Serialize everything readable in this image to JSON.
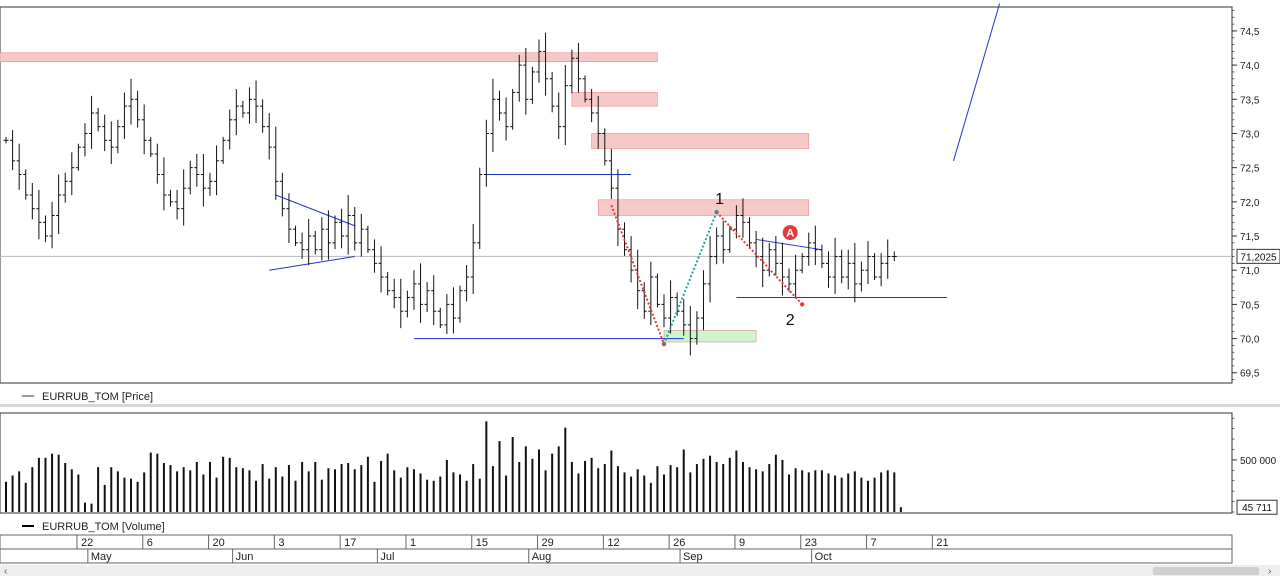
{
  "chart_data": [
    {
      "type": "ohlc",
      "title": "",
      "legend": {
        "name": "EURRUB_TOM [Price]",
        "placement": "bottom-left"
      },
      "last_price": 71.2025,
      "last_price_label": "71,2025",
      "ylim": [
        69.35,
        74.85
      ],
      "y_ticks": [
        69.5,
        70.0,
        70.5,
        71.0,
        71.5,
        72.0,
        72.5,
        73.0,
        73.5,
        74.0,
        74.5
      ],
      "y_tick_labels": [
        "69,5",
        "70,0",
        "70,5",
        "71,0",
        "71,5",
        "72,0",
        "72,5",
        "73,0",
        "73,5",
        "74,0",
        "74,5"
      ],
      "grid": false,
      "x_ticks": [
        {
          "day": 12,
          "label": "22"
        },
        {
          "day": 22,
          "label": "6"
        },
        {
          "day": 32,
          "label": "20"
        },
        {
          "day": 42,
          "label": "3"
        },
        {
          "day": 52,
          "label": "17"
        },
        {
          "day": 62,
          "label": "1"
        },
        {
          "day": 72,
          "label": "15"
        },
        {
          "day": 82,
          "label": "29"
        },
        {
          "day": 92,
          "label": "12"
        },
        {
          "day": 102,
          "label": "26"
        },
        {
          "day": 112,
          "label": "9"
        },
        {
          "day": 122,
          "label": "23"
        },
        {
          "day": 132,
          "label": "7"
        },
        {
          "day": 142,
          "label": "21"
        }
      ],
      "month_labels": [
        {
          "day": 17,
          "label": "May"
        },
        {
          "day": 39,
          "label": "Jun"
        },
        {
          "day": 61,
          "label": "Jul"
        },
        {
          "day": 84,
          "label": "Aug"
        },
        {
          "day": 107,
          "label": "Sep"
        },
        {
          "day": 127,
          "label": "Oct"
        }
      ],
      "closes": [
        72.9,
        72.6,
        72.4,
        72.1,
        71.9,
        71.7,
        71.5,
        71.8,
        72.1,
        72.3,
        72.5,
        72.8,
        73.0,
        73.3,
        73.1,
        72.9,
        72.8,
        73.1,
        73.4,
        73.5,
        73.2,
        72.9,
        72.7,
        72.4,
        72.1,
        72.0,
        71.9,
        72.2,
        72.5,
        72.4,
        72.2,
        72.3,
        72.6,
        72.9,
        73.2,
        73.4,
        73.3,
        73.5,
        73.4,
        73.1,
        72.8,
        72.3,
        71.9,
        71.6,
        71.4,
        71.3,
        71.5,
        71.3,
        71.6,
        71.4,
        71.7,
        71.5,
        71.8,
        71.4,
        71.6,
        71.3,
        71.1,
        70.9,
        70.7,
        70.6,
        70.4,
        70.6,
        70.8,
        70.5,
        70.7,
        70.4,
        70.2,
        70.5,
        70.3,
        70.7,
        70.9,
        71.4,
        72.4,
        73.0,
        73.5,
        73.3,
        73.1,
        73.6,
        74.0,
        73.5,
        73.9,
        74.2,
        73.8,
        73.4,
        73.1,
        73.7,
        74.1,
        73.8,
        73.5,
        73.3,
        73.0,
        72.6,
        72.2,
        71.6,
        71.3,
        71.0,
        70.7,
        70.4,
        70.9,
        70.5,
        70.3,
        70.6,
        70.4,
        70.2,
        70.0,
        70.3,
        70.8,
        71.2,
        71.5,
        71.3,
        71.6,
        71.8,
        71.7,
        71.4,
        71.2,
        71.0,
        71.3,
        71.1,
        70.9,
        70.8,
        71.0,
        71.2,
        71.4,
        71.3,
        71.1,
        70.9,
        71.2,
        70.9,
        71.1,
        70.8,
        71.0,
        71.2,
        70.9,
        71.1,
        71.2,
        71.2
      ],
      "zones": [
        {
          "from_day": 0,
          "to_day": 99,
          "low": 74.05,
          "high": 74.18,
          "color": "#f7c8c8"
        },
        {
          "from_day": 86,
          "to_day": 99,
          "low": 73.4,
          "high": 73.6,
          "color": "#f7c8c8"
        },
        {
          "from_day": 89,
          "to_day": 122,
          "low": 72.78,
          "high": 73.0,
          "color": "#f7c8c8"
        },
        {
          "from_day": 90,
          "to_day": 122,
          "low": 71.8,
          "high": 72.03,
          "color": "#f7c8c8"
        },
        {
          "from_day": 100,
          "to_day": 114,
          "low": 69.95,
          "high": 70.12,
          "color": "#ccf5cc"
        }
      ],
      "support_lines": [
        {
          "from_day": 73,
          "to_day": 95,
          "price": 72.4
        },
        {
          "from_day": 62,
          "to_day": 103,
          "price": 70.0
        },
        {
          "from_day": 111,
          "to_day": 143,
          "price": 70.6
        }
      ],
      "triangles": [
        {
          "upper": [
            [
              41,
              72.1
            ],
            [
              53,
              71.65
            ]
          ],
          "lower": [
            [
              40,
              71.0
            ],
            [
              53,
              71.2
            ]
          ]
        }
      ],
      "trend_lines": [
        {
          "from": [
            114,
            71.45
          ],
          "to": [
            124,
            71.3
          ]
        },
        {
          "from": [
            144,
            72.6
          ],
          "to": [
            151,
            74.9
          ]
        }
      ],
      "waves": [
        {
          "from": [
            92,
            71.95
          ],
          "to": [
            100,
            69.92
          ],
          "color": "#e03c3c"
        },
        {
          "from": [
            100,
            69.92
          ],
          "to": [
            108,
            71.85
          ],
          "color": "#22a39a"
        },
        {
          "from": [
            108,
            71.85
          ],
          "to": [
            121,
            70.5
          ],
          "color": "#e03c3c"
        }
      ],
      "annotations": [
        {
          "day": 108,
          "price": 71.97,
          "text": "1"
        },
        {
          "day": 121,
          "price": 70.2,
          "text": "2"
        },
        {
          "day": 121,
          "price": 71.55,
          "text": "A",
          "marker": "circle",
          "color": "#e03c3c"
        }
      ]
    },
    {
      "type": "bar",
      "title": "",
      "legend": {
        "name": "EURRUB_TOM [Volume]",
        "placement": "bottom-left"
      },
      "last_value": 45711,
      "last_value_label": "45 711",
      "ylim": [
        0,
        950000
      ],
      "y_ticks": [
        500000
      ],
      "y_tick_labels": [
        "500 000"
      ],
      "grid": false,
      "values": [
        290000,
        350000,
        390000,
        280000,
        430000,
        520000,
        520000,
        560000,
        550000,
        470000,
        410000,
        360000,
        90000,
        80000,
        430000,
        260000,
        430000,
        390000,
        330000,
        320000,
        290000,
        380000,
        570000,
        560000,
        470000,
        450000,
        390000,
        430000,
        400000,
        480000,
        360000,
        480000,
        330000,
        530000,
        520000,
        430000,
        420000,
        400000,
        300000,
        460000,
        320000,
        430000,
        340000,
        450000,
        300000,
        480000,
        390000,
        480000,
        310000,
        420000,
        410000,
        460000,
        470000,
        410000,
        450000,
        530000,
        290000,
        490000,
        560000,
        400000,
        330000,
        430000,
        410000,
        370000,
        310000,
        300000,
        340000,
        500000,
        380000,
        360000,
        300000,
        460000,
        320000,
        870000,
        440000,
        680000,
        350000,
        720000,
        480000,
        630000,
        510000,
        600000,
        400000,
        560000,
        630000,
        810000,
        480000,
        370000,
        490000,
        520000,
        420000,
        460000,
        590000,
        440000,
        380000,
        340000,
        410000,
        350000,
        280000,
        440000,
        360000,
        450000,
        430000,
        600000,
        380000,
        460000,
        510000,
        540000,
        480000,
        460000,
        520000,
        590000,
        480000,
        430000,
        410000,
        390000,
        460000,
        550000,
        500000,
        360000,
        420000,
        400000,
        380000,
        400000,
        400000,
        370000,
        350000,
        330000,
        370000,
        390000,
        330000,
        300000,
        330000,
        380000,
        400000,
        380000,
        45711
      ]
    }
  ]
}
